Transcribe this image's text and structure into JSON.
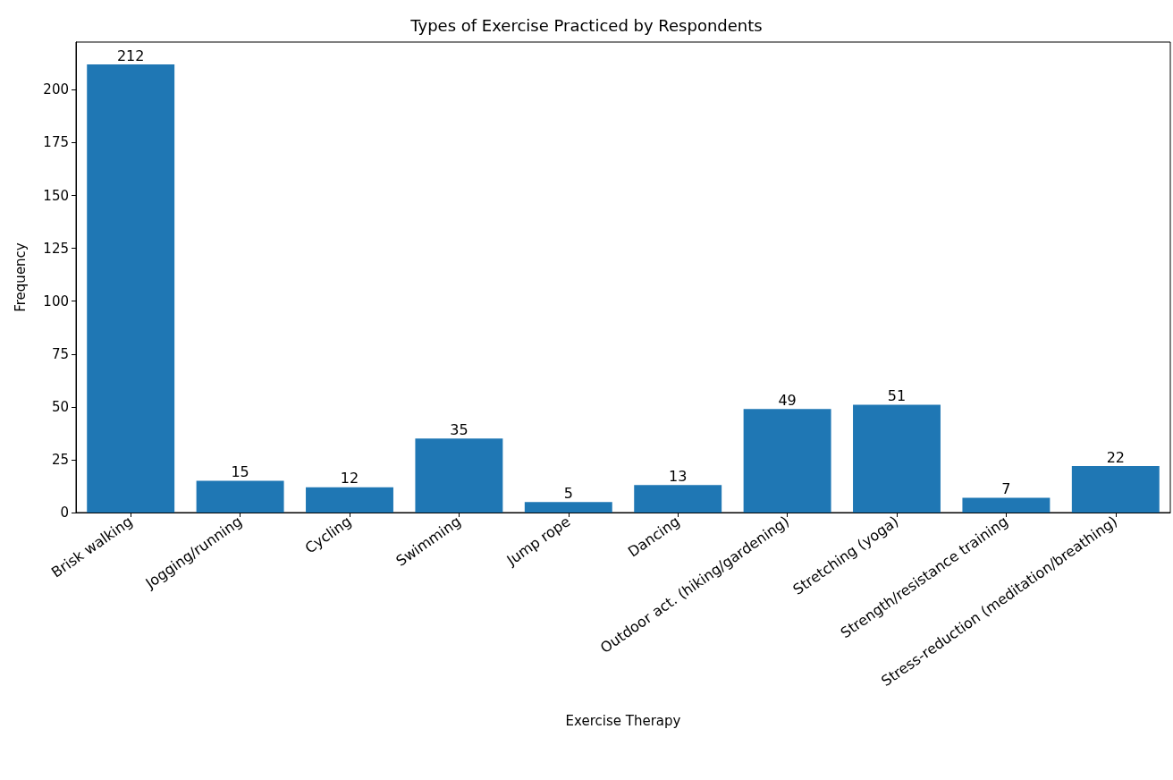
{
  "chart_data": {
    "type": "bar",
    "title": "Types of Exercise Practiced by Respondents",
    "xlabel": "Exercise Therapy",
    "ylabel": "Frequency",
    "categories": [
      "Brisk walking",
      "Jogging/running",
      "Cycling",
      "Swimming",
      "Jump rope",
      "Dancing",
      "Outdoor act. (hiking/gardening)",
      "Stretching (yoga)",
      "Strength/resistance training",
      "Stress-reduction (meditation/breathing)"
    ],
    "values": [
      212,
      15,
      12,
      35,
      5,
      13,
      49,
      51,
      7,
      22
    ],
    "color": "#1f77b4",
    "ylim": [
      0,
      222.6
    ],
    "yticks": [
      0,
      25,
      50,
      75,
      100,
      125,
      150,
      175,
      200
    ],
    "data_labels": true,
    "grid": false
  }
}
